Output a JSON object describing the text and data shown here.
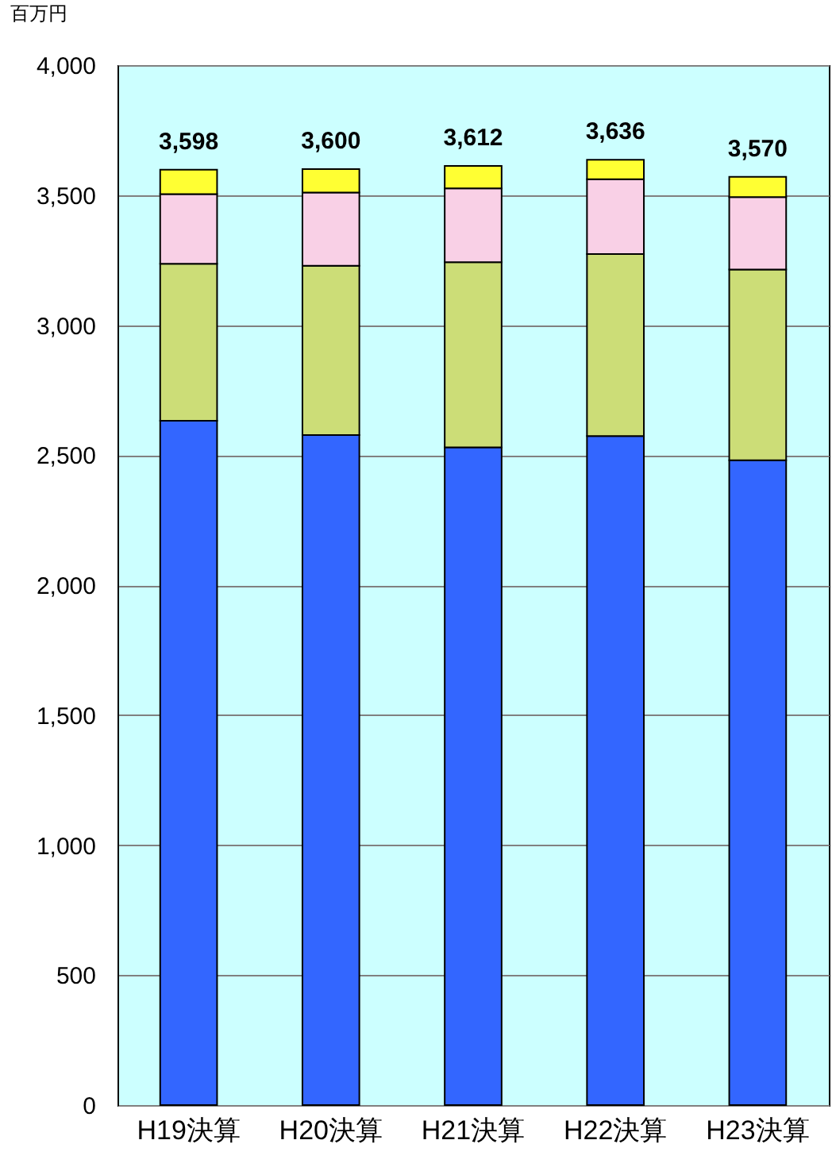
{
  "chart_data": {
    "type": "bar",
    "ylabel": "百万円",
    "stacked": true,
    "grid": "y",
    "categories": [
      "H19決算",
      "H20決算",
      "H21決算",
      "H22決算",
      "H23決算"
    ],
    "series": [
      {
        "color": "#3366ff",
        "values": [
          2632,
          2577,
          2530,
          2573,
          2480
        ]
      },
      {
        "color": "#ccdd77",
        "values": [
          604,
          651,
          712,
          700,
          734
        ]
      },
      {
        "color": "#f9d0e6",
        "values": [
          268,
          282,
          284,
          288,
          278
        ]
      },
      {
        "color": "#ffff33",
        "values": [
          94,
          90,
          86,
          75,
          78
        ]
      }
    ],
    "totals": [
      "3,598",
      "3,600",
      "3,612",
      "3,636",
      "3,570"
    ],
    "ylim": [
      0,
      4000
    ],
    "yticks": [
      0,
      500,
      {
        "value": 1000,
        "label": "1,000"
      },
      {
        "value": 1500,
        "label": "1,500"
      },
      {
        "value": 2000,
        "label": "2,000"
      },
      {
        "value": 2500,
        "label": "2,500"
      },
      {
        "value": 3000,
        "label": "3,000"
      },
      {
        "value": 3500,
        "label": "3,500"
      },
      {
        "value": 4000,
        "label": "4,000"
      }
    ]
  }
}
